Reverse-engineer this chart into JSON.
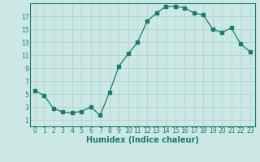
{
  "x": [
    0,
    1,
    2,
    3,
    4,
    5,
    6,
    7,
    8,
    9,
    10,
    11,
    12,
    13,
    14,
    15,
    16,
    17,
    18,
    19,
    20,
    21,
    22,
    23
  ],
  "y": [
    5.5,
    4.8,
    2.8,
    2.2,
    2.1,
    2.3,
    3.0,
    1.7,
    5.3,
    9.3,
    11.2,
    13.0,
    16.2,
    17.5,
    18.5,
    18.5,
    18.3,
    17.5,
    17.2,
    15.0,
    14.5,
    15.2,
    12.7,
    11.5
  ],
  "line_color": "#1a7a6e",
  "marker": "s",
  "marker_size": 2.5,
  "bg_color": "#cce8e4",
  "grid_color": "#b0d4cf",
  "xlabel": "Humidex (Indice chaleur)",
  "xlim": [
    -0.5,
    23.5
  ],
  "ylim": [
    0,
    19
  ],
  "yticks": [
    1,
    3,
    5,
    7,
    9,
    11,
    13,
    15,
    17
  ],
  "xticks": [
    0,
    1,
    2,
    3,
    4,
    5,
    6,
    7,
    8,
    9,
    10,
    11,
    12,
    13,
    14,
    15,
    16,
    17,
    18,
    19,
    20,
    21,
    22,
    23
  ],
  "tick_label_fontsize": 5.5,
  "xlabel_fontsize": 7.0
}
